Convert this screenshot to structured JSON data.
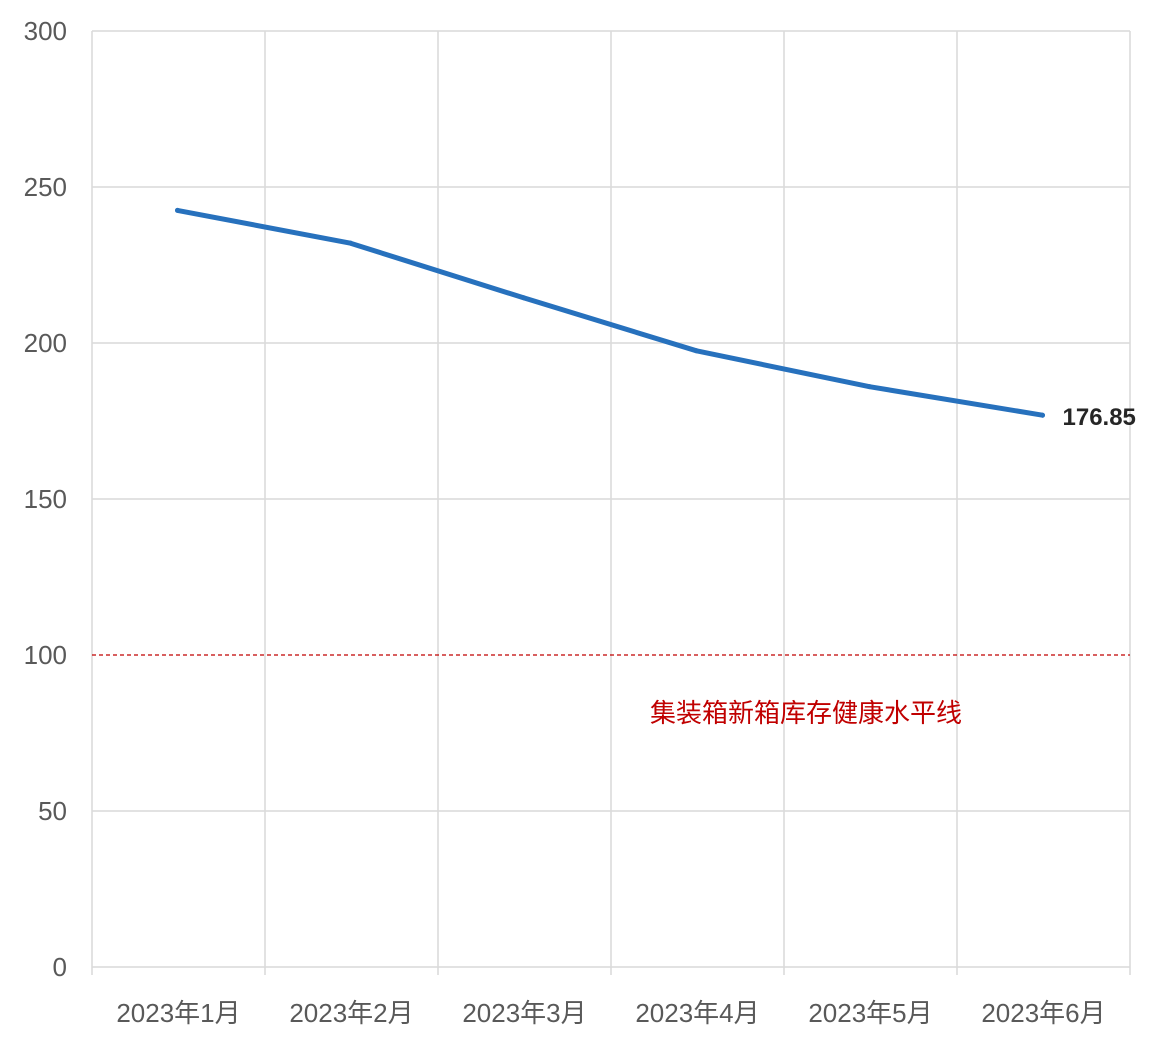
{
  "chart_data": {
    "type": "line",
    "categories": [
      "2023年1月",
      "2023年2月",
      "2023年3月",
      "2023年4月",
      "2023年5月",
      "2023年6月"
    ],
    "series": [
      {
        "values": [
          242.5,
          232,
          214.5,
          197.5,
          186,
          176.85
        ],
        "color": "#2771BD"
      }
    ],
    "end_label": "176.85",
    "ylim": [
      0,
      300
    ],
    "yticks": [
      0,
      50,
      100,
      150,
      200,
      250,
      300
    ],
    "reference_line": {
      "value": 100,
      "label": "集装箱新箱库存健康水平线",
      "color": "#C00000"
    },
    "grid": true,
    "legend": "none"
  },
  "colors": {
    "grid": "#D9D9D9",
    "axis_text": "#595959",
    "end_label": "#262626"
  }
}
